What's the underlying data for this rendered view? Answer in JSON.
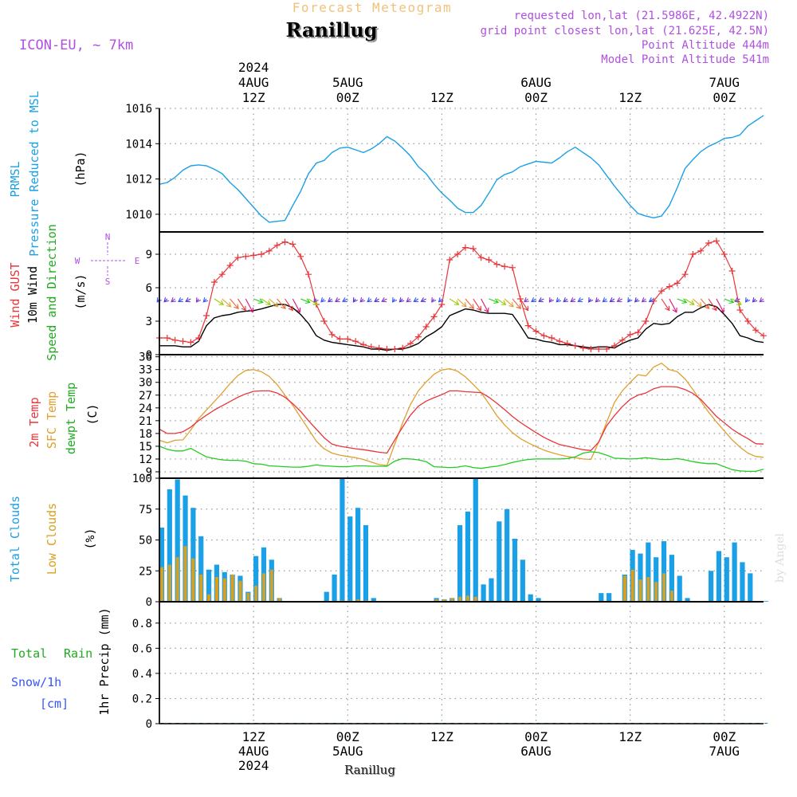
{
  "header": {
    "top_title": "Forecast Meteogram",
    "location": "Ranillug",
    "model": "ICON-EU, ~ 7km",
    "requested": "requested lon,lat (21.5986E, 42.4922N)",
    "grid_point": "grid point closest lon,lat (21.625E, 42.5N)",
    "point_alt": "Point Altitude 444m",
    "model_alt": "Model Point Altitude 541m"
  },
  "footer": {
    "location": "Ranillug",
    "credit": "by Angel"
  },
  "time_axis": {
    "top_labels": [
      {
        "h": 12,
        "lines": [
          "2024",
          "4AUG",
          "12Z"
        ]
      },
      {
        "h": 24,
        "lines": [
          "5AUG",
          "00Z"
        ]
      },
      {
        "h": 36,
        "lines": [
          "12Z"
        ]
      },
      {
        "h": 48,
        "lines": [
          "6AUG",
          "00Z"
        ]
      },
      {
        "h": 60,
        "lines": [
          "12Z"
        ]
      },
      {
        "h": 72,
        "lines": [
          "7AUG",
          "00Z"
        ]
      }
    ],
    "bottom_labels": [
      {
        "h": 12,
        "lines": [
          "12Z",
          "4AUG",
          "2024"
        ]
      },
      {
        "h": 24,
        "lines": [
          "00Z",
          "5AUG"
        ]
      },
      {
        "h": 36,
        "lines": [
          "12Z"
        ]
      },
      {
        "h": 48,
        "lines": [
          "00Z",
          "6AUG"
        ]
      },
      {
        "h": 60,
        "lines": [
          "12Z"
        ]
      },
      {
        "h": 72,
        "lines": [
          "00Z",
          "7AUG"
        ]
      }
    ],
    "hour_start": 0,
    "hour_end": 77
  },
  "colors": {
    "pressure": "#1aa0e6",
    "gust": "#e8363a",
    "wind": "#000000",
    "t2m": "#e8363a",
    "sfc": "#e0a030",
    "dew": "#22cc22",
    "total_cloud": "#1aa0e6",
    "low_cloud": "#d9a020",
    "rain": "#22cc22",
    "snow": "#3355ff",
    "label_purple": "#b050e0"
  },
  "panels": {
    "pressure": {
      "labels": [
        "PRMSL",
        "Pressure Reduced to MSL",
        "(hPa)"
      ],
      "ticks": [
        "1010",
        "1012",
        "1014",
        "1016"
      ]
    },
    "wind": {
      "labels": [
        "Wind GUST",
        "10m Wind",
        "Speed and Direction",
        "(m/s)"
      ],
      "ticks": [
        "0",
        "3",
        "6",
        "9"
      ],
      "compass": {
        "n": "N",
        "s": "S",
        "w": "W",
        "e": "E"
      }
    },
    "temp": {
      "labels": [
        "2m Temp",
        "SFC Temp",
        "dewpt Temp",
        "(C)"
      ],
      "ticks": [
        "9",
        "12",
        "15",
        "18",
        "21",
        "24",
        "27",
        "30",
        "33",
        "36"
      ]
    },
    "clouds": {
      "labels": [
        "Total Clouds",
        "Low Clouds",
        "(%)"
      ],
      "ticks": [
        "0",
        "25",
        "50",
        "75",
        "100"
      ]
    },
    "precip": {
      "labels": [
        "Total",
        "Rain",
        "Snow/1h",
        "[cm]",
        "1hr Precip (mm)"
      ],
      "ticks": [
        "0",
        "0.2",
        "0.4",
        "0.6",
        "0.8"
      ]
    }
  },
  "chart_data": [
    {
      "type": "line",
      "title": "PRMSL Pressure Reduced to MSL",
      "ylabel": "hPa",
      "ylim": [
        1009,
        1016
      ],
      "x_hours": [
        0,
        1,
        2,
        3,
        4,
        5,
        6,
        7,
        8,
        9,
        10,
        11,
        12,
        13,
        14,
        15,
        16,
        17,
        18,
        19,
        20,
        21,
        22,
        23,
        24,
        25,
        26,
        27,
        28,
        29,
        30,
        31,
        32,
        33,
        34,
        35,
        36,
        37,
        38,
        39,
        40,
        41,
        42,
        43,
        44,
        45,
        46,
        47,
        48,
        49,
        50,
        51,
        52,
        53,
        54,
        55,
        56,
        57,
        58,
        59,
        60,
        61,
        62,
        63,
        64,
        65,
        66,
        67,
        68,
        69,
        70,
        71,
        72,
        73,
        74,
        75,
        76,
        77
      ],
      "series": [
        {
          "name": "PRMSL",
          "values": [
            1011.7,
            1011.8,
            1012.1,
            1012.5,
            1012.75,
            1012.8,
            1012.75,
            1012.55,
            1012.3,
            1011.8,
            1011.4,
            1010.9,
            1010.4,
            1009.9,
            1009.55,
            1009.6,
            1009.65,
            1010.5,
            1011.3,
            1012.3,
            1012.9,
            1013.05,
            1013.5,
            1013.75,
            1013.8,
            1013.65,
            1013.5,
            1013.7,
            1014.0,
            1014.4,
            1014.15,
            1013.75,
            1013.3,
            1012.7,
            1012.3,
            1011.7,
            1011.2,
            1010.8,
            1010.35,
            1010.1,
            1010.1,
            1010.5,
            1011.2,
            1011.95,
            1012.25,
            1012.4,
            1012.7,
            1012.85,
            1013.0,
            1012.95,
            1012.9,
            1013.2,
            1013.55,
            1013.8,
            1013.5,
            1013.2,
            1012.8,
            1012.2,
            1011.6,
            1011.05,
            1010.5,
            1010.05,
            1009.9,
            1009.8,
            1009.9,
            1010.5,
            1011.5,
            1012.6,
            1013.1,
            1013.55,
            1013.85,
            1014.05,
            1014.3,
            1014.35,
            1014.5,
            1015.0,
            1015.3,
            1015.6
          ]
        }
      ]
    },
    {
      "type": "line",
      "title": "Wind GUST / 10m Wind Speed and Direction",
      "ylabel": "m/s",
      "ylim": [
        0,
        11
      ],
      "series": [
        {
          "name": "Wind GUST",
          "values": [
            1.5,
            1.5,
            1.3,
            1.2,
            1.1,
            1.5,
            3.5,
            6.5,
            7.2,
            8.0,
            8.7,
            8.8,
            8.9,
            9.0,
            9.3,
            9.8,
            10.1,
            9.9,
            8.8,
            7.2,
            4.5,
            3.0,
            1.8,
            1.4,
            1.4,
            1.2,
            0.9,
            0.7,
            0.6,
            0.5,
            0.5,
            0.6,
            1.0,
            1.6,
            2.5,
            3.4,
            4.5,
            8.5,
            9.0,
            9.6,
            9.5,
            8.7,
            8.5,
            8.1,
            7.9,
            7.8,
            5.0,
            2.6,
            2.1,
            1.7,
            1.5,
            1.2,
            1.0,
            0.8,
            0.6,
            0.5,
            0.5,
            0.5,
            0.8,
            1.3,
            1.8,
            2.0,
            3.0,
            4.8,
            5.7,
            6.1,
            6.4,
            7.2,
            9.0,
            9.3,
            10.0,
            10.2,
            9.0,
            7.5,
            4.0,
            3.0,
            2.2,
            1.7
          ]
        },
        {
          "name": "10m Wind",
          "values": [
            0.8,
            0.8,
            0.8,
            0.7,
            0.7,
            1.2,
            2.6,
            3.3,
            3.5,
            3.6,
            3.8,
            3.9,
            3.95,
            4.1,
            4.3,
            4.5,
            4.5,
            4.2,
            3.6,
            2.8,
            1.7,
            1.3,
            1.1,
            1.0,
            0.9,
            0.8,
            0.7,
            0.5,
            0.5,
            0.4,
            0.5,
            0.5,
            0.7,
            1.0,
            1.6,
            2.0,
            2.5,
            3.5,
            3.8,
            4.1,
            4.0,
            3.8,
            3.7,
            3.7,
            3.7,
            3.6,
            2.6,
            1.5,
            1.4,
            1.2,
            1.1,
            0.9,
            0.9,
            0.8,
            0.7,
            0.6,
            0.7,
            0.7,
            0.6,
            1.0,
            1.3,
            1.5,
            2.3,
            2.8,
            2.7,
            2.8,
            3.4,
            3.8,
            3.8,
            4.2,
            4.5,
            4.3,
            3.6,
            2.8,
            1.7,
            1.5,
            1.2,
            1.1
          ]
        }
      ],
      "wind_dir_arrows": "10m wind direction arrows along the wind panel"
    },
    {
      "type": "line",
      "title": "2m Temp / SFC Temp / dewpt Temp",
      "ylabel": "C",
      "ylim": [
        7.5,
        36.5
      ],
      "series": [
        {
          "name": "2m Temp",
          "values": [
            19.0,
            18.0,
            18.0,
            18.4,
            19.5,
            21.0,
            22.3,
            23.5,
            24.5,
            25.5,
            26.5,
            27.3,
            27.9,
            28.0,
            28.0,
            27.5,
            26.5,
            25.0,
            23.2,
            21.0,
            19.0,
            17.0,
            15.5,
            15.0,
            14.7,
            14.4,
            14.2,
            13.9,
            13.6,
            13.4,
            16.5,
            19.5,
            22.3,
            24.4,
            25.6,
            26.4,
            27.1,
            28.0,
            28.0,
            27.8,
            27.7,
            27.6,
            26.5,
            25.1,
            23.6,
            22.0,
            20.6,
            19.4,
            18.2,
            17.1,
            16.2,
            15.4,
            15.0,
            14.6,
            14.2,
            14.0,
            16.0,
            19.8,
            22.2,
            24.3,
            26.0,
            27.0,
            27.5,
            28.5,
            29.0,
            29.0,
            28.9,
            28.3,
            27.4,
            26.0,
            24.0,
            22.0,
            20.5,
            19.0,
            17.8,
            16.8,
            15.6,
            15.5
          ]
        },
        {
          "name": "SFC Temp",
          "values": [
            16.4,
            15.8,
            16.4,
            16.5,
            18.8,
            21.5,
            23.5,
            25.5,
            27.5,
            29.7,
            31.6,
            32.8,
            33.0,
            32.5,
            31.4,
            29.5,
            27.0,
            24.6,
            21.8,
            19.0,
            16.2,
            14.4,
            13.4,
            12.9,
            12.6,
            12.3,
            11.9,
            11.3,
            10.7,
            10.5,
            15.5,
            20.5,
            24.8,
            28.0,
            30.1,
            31.9,
            32.9,
            33.2,
            32.6,
            31.3,
            29.5,
            27.6,
            25.0,
            22.2,
            20.0,
            18.2,
            16.8,
            15.8,
            14.9,
            14.1,
            13.5,
            13.0,
            12.6,
            12.3,
            12.0,
            11.9,
            16.0,
            20.6,
            25.3,
            28.0,
            30.0,
            31.8,
            31.5,
            33.6,
            34.5,
            33.0,
            32.5,
            30.8,
            28.3,
            25.6,
            23.0,
            20.7,
            18.6,
            16.5,
            14.8,
            13.4,
            12.6,
            12.4
          ]
        },
        {
          "name": "dewpt Temp",
          "values": [
            15.0,
            14.3,
            13.9,
            13.9,
            14.5,
            13.5,
            12.5,
            12.1,
            11.8,
            11.7,
            11.7,
            11.5,
            10.9,
            10.8,
            10.4,
            10.3,
            10.2,
            10.1,
            10.1,
            10.3,
            10.6,
            10.4,
            10.3,
            10.2,
            10.2,
            10.4,
            10.4,
            10.3,
            10.3,
            10.3,
            11.5,
            12.1,
            12.0,
            11.8,
            11.4,
            10.2,
            10.1,
            10.0,
            10.1,
            10.4,
            10.0,
            9.8,
            10.1,
            10.3,
            10.7,
            11.2,
            11.6,
            11.9,
            12.0,
            12.0,
            12.0,
            12.0,
            12.1,
            12.5,
            13.4,
            13.7,
            13.5,
            12.9,
            12.2,
            12.1,
            12.0,
            12.1,
            12.3,
            12.1,
            11.9,
            11.9,
            12.1,
            11.8,
            11.4,
            11.1,
            10.9,
            10.9,
            10.2,
            9.5,
            9.2,
            9.1,
            9.1,
            9.6
          ]
        }
      ]
    },
    {
      "type": "bar",
      "title": "Total Clouds / Low Clouds",
      "ylabel": "%",
      "ylim": [
        0,
        100
      ],
      "series": [
        {
          "name": "Total Clouds",
          "values": [
            60,
            91,
            99,
            86,
            76,
            53,
            26,
            30,
            24,
            22,
            21,
            8,
            37,
            44,
            34,
            3,
            0,
            0,
            0,
            0,
            0,
            8,
            22,
            100,
            69,
            76,
            62,
            3,
            0,
            0,
            0,
            0,
            0,
            0,
            0,
            3,
            2,
            3,
            62,
            73,
            100,
            14,
            19,
            65,
            75,
            51,
            34,
            6,
            3,
            0,
            0,
            0,
            0,
            0,
            0,
            0,
            7,
            7,
            0,
            22,
            42,
            39,
            48,
            36,
            49,
            38,
            21,
            3,
            0,
            0,
            25,
            41,
            36,
            48,
            32,
            23,
            0,
            0
          ]
        },
        {
          "name": "Low Clouds",
          "values": [
            28,
            30,
            36,
            45,
            35,
            22,
            6,
            20,
            19,
            22,
            17,
            7,
            13,
            23,
            26,
            3,
            0,
            0,
            0,
            0,
            0,
            0,
            0,
            1,
            1,
            2,
            1,
            0,
            0,
            0,
            0,
            0,
            0,
            0,
            0,
            2,
            2,
            3,
            4,
            5,
            4,
            0,
            0,
            0,
            0,
            0,
            0,
            0,
            0,
            0,
            0,
            0,
            0,
            0,
            0,
            0,
            0,
            0,
            0,
            21,
            26,
            18,
            20,
            16,
            23,
            9,
            0,
            0,
            0,
            0,
            0,
            0,
            0,
            0,
            0,
            0,
            0,
            0
          ]
        }
      ]
    },
    {
      "type": "bar",
      "title": "1hr Precip (mm)",
      "ylabel": "mm",
      "ylim": [
        0,
        0.97
      ],
      "series": [
        {
          "name": "Total Rain",
          "values": [
            0,
            0,
            0,
            0,
            0,
            0,
            0,
            0,
            0,
            0,
            0,
            0,
            0,
            0,
            0,
            0,
            0,
            0,
            0,
            0,
            0,
            0,
            0,
            0,
            0,
            0,
            0,
            0,
            0,
            0,
            0,
            0,
            0,
            0,
            0,
            0,
            0,
            0,
            0,
            0,
            0,
            0,
            0,
            0,
            0,
            0,
            0,
            0,
            0,
            0,
            0,
            0,
            0,
            0,
            0,
            0,
            0,
            0,
            0,
            0,
            0,
            0,
            0,
            0,
            0,
            0,
            0,
            0,
            0,
            0,
            0,
            0,
            0,
            0,
            0,
            0,
            0,
            0
          ]
        },
        {
          "name": "Snow/1h",
          "values": [
            0,
            0,
            0,
            0,
            0,
            0,
            0,
            0,
            0,
            0,
            0,
            0,
            0,
            0,
            0,
            0,
            0,
            0,
            0,
            0,
            0,
            0,
            0,
            0,
            0,
            0,
            0,
            0,
            0,
            0,
            0,
            0,
            0,
            0,
            0,
            0,
            0,
            0,
            0,
            0,
            0,
            0,
            0,
            0,
            0,
            0,
            0,
            0,
            0,
            0,
            0,
            0,
            0,
            0,
            0,
            0,
            0,
            0,
            0,
            0,
            0,
            0,
            0,
            0,
            0,
            0,
            0,
            0,
            0,
            0,
            0,
            0,
            0,
            0,
            0,
            0,
            0,
            0
          ]
        }
      ]
    }
  ]
}
